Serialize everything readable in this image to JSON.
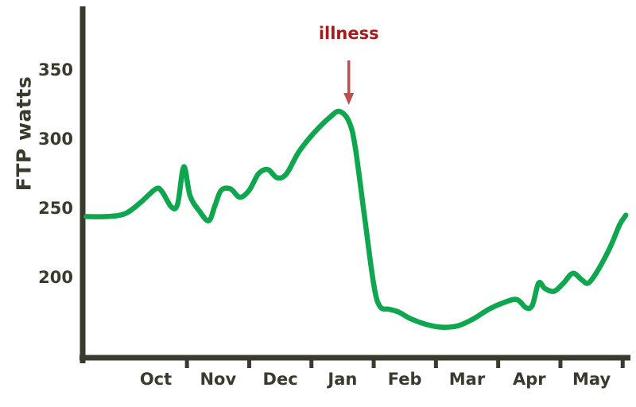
{
  "chart_data": {
    "type": "line",
    "title": "",
    "ylabel": "FTP watts",
    "xlabel": "",
    "grid": false,
    "legend": "none",
    "x_tick_labels": [
      "Oct",
      "Nov",
      "Dec",
      "Jan",
      "Feb",
      "Mar",
      "Apr",
      "May"
    ],
    "x_tick_months": [
      1,
      2,
      3,
      4,
      5,
      6,
      7,
      8
    ],
    "y_ticks": [
      200,
      250,
      300,
      350
    ],
    "ylim": [
      142,
      375
    ],
    "xlim": [
      -0.17,
      8.65
    ],
    "axis_color": "#3b3a2e",
    "line_color": "#0ea64f",
    "series": [
      {
        "name": "FTP",
        "x": [
          -0.12,
          0.2,
          0.5,
          0.75,
          1.0,
          1.1,
          1.25,
          1.35,
          1.45,
          1.55,
          1.7,
          1.85,
          1.95,
          2.05,
          2.2,
          2.35,
          2.5,
          2.65,
          2.8,
          2.95,
          3.1,
          3.3,
          3.55,
          3.8,
          3.95,
          4.1,
          4.2,
          4.35,
          4.5,
          4.6,
          4.75,
          4.9,
          5.1,
          5.35,
          5.6,
          5.85,
          6.1,
          6.35,
          6.6,
          6.8,
          6.95,
          7.05,
          7.15,
          7.25,
          7.4,
          7.55,
          7.7,
          7.85,
          7.95,
          8.1,
          8.3,
          8.45,
          8.55
        ],
        "y": [
          244,
          244,
          246,
          254,
          264,
          262,
          251,
          253,
          280,
          259,
          248,
          241,
          252,
          263,
          264,
          258,
          263,
          275,
          278,
          272,
          275,
          291,
          305,
          316,
          320,
          313,
          295,
          245,
          195,
          179,
          177,
          175,
          170,
          166,
          164,
          165,
          170,
          177,
          182,
          184,
          178,
          180,
          196,
          192,
          190,
          196,
          203,
          198,
          196,
          205,
          222,
          238,
          245
        ]
      }
    ],
    "annotation": {
      "text": "illness",
      "x_month": 4.1,
      "text_color": "#a81a1a",
      "arrow_color": "#c0504d",
      "arrow_direction": "down"
    }
  }
}
